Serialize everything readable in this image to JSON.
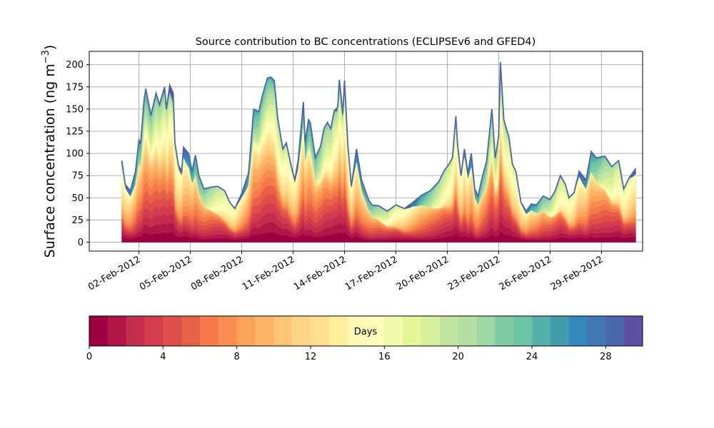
{
  "chart_data": {
    "type": "area",
    "title": "Source contribution to BC concentrations (ECLIPSEv6 and GFED4)",
    "ylabel_text": "Surface concentration (ng m",
    "ylabel_sup": "−3",
    "ylabel_close": ")",
    "ylim": [
      -10,
      215
    ],
    "yticks": [
      0,
      25,
      50,
      75,
      100,
      125,
      150,
      175,
      200
    ],
    "xlim": [
      -0.9,
      31.4
    ],
    "xtick_values": [
      2,
      5,
      8,
      11,
      14,
      17,
      20,
      23,
      26,
      29
    ],
    "xtick_labels": [
      "02-Feb-2012",
      "05-Feb-2012",
      "08-Feb-2012",
      "11-Feb-2012",
      "14-Feb-2012",
      "17-Feb-2012",
      "20-Feb-2012",
      "23-Feb-2012",
      "26-Feb-2012",
      "29-Feb-2012"
    ],
    "x_unit": "day of February 2012",
    "grid": true,
    "total": [
      [
        1.0,
        92
      ],
      [
        1.2,
        65
      ],
      [
        1.5,
        58
      ],
      [
        1.8,
        80
      ],
      [
        2.0,
        115
      ],
      [
        2.1,
        112
      ],
      [
        2.3,
        160
      ],
      [
        2.4,
        173
      ],
      [
        2.7,
        143
      ],
      [
        3.0,
        168
      ],
      [
        3.2,
        155
      ],
      [
        3.5,
        175
      ],
      [
        3.6,
        150
      ],
      [
        3.8,
        177
      ],
      [
        4.0,
        168
      ],
      [
        4.1,
        112
      ],
      [
        4.3,
        87
      ],
      [
        4.5,
        80
      ],
      [
        4.6,
        107
      ],
      [
        4.9,
        100
      ],
      [
        5.1,
        80
      ],
      [
        5.3,
        98
      ],
      [
        5.5,
        75
      ],
      [
        5.8,
        60
      ],
      [
        6.2,
        62
      ],
      [
        6.6,
        63
      ],
      [
        7.0,
        58
      ],
      [
        7.3,
        45
      ],
      [
        7.6,
        38
      ],
      [
        8.0,
        55
      ],
      [
        8.4,
        78
      ],
      [
        8.7,
        150
      ],
      [
        9.0,
        147
      ],
      [
        9.2,
        165
      ],
      [
        9.5,
        185
      ],
      [
        9.7,
        186
      ],
      [
        9.9,
        182
      ],
      [
        10.1,
        140
      ],
      [
        10.4,
        105
      ],
      [
        10.6,
        112
      ],
      [
        10.9,
        85
      ],
      [
        11.1,
        70
      ],
      [
        11.3,
        93
      ],
      [
        11.6,
        158
      ],
      [
        11.7,
        112
      ],
      [
        11.9,
        138
      ],
      [
        12.0,
        135
      ],
      [
        12.3,
        95
      ],
      [
        12.6,
        108
      ],
      [
        12.8,
        128
      ],
      [
        13.0,
        135
      ],
      [
        13.2,
        128
      ],
      [
        13.4,
        148
      ],
      [
        13.6,
        152
      ],
      [
        13.7,
        183
      ],
      [
        13.9,
        145
      ],
      [
        14.0,
        182
      ],
      [
        14.2,
        108
      ],
      [
        14.4,
        63
      ],
      [
        14.7,
        105
      ],
      [
        15.0,
        70
      ],
      [
        15.4,
        48
      ],
      [
        15.6,
        42
      ],
      [
        16.0,
        41
      ],
      [
        16.5,
        35
      ],
      [
        17.0,
        42
      ],
      [
        17.5,
        38
      ],
      [
        18.0,
        45
      ],
      [
        18.5,
        53
      ],
      [
        19.0,
        58
      ],
      [
        19.5,
        68
      ],
      [
        19.8,
        80
      ],
      [
        20.1,
        88
      ],
      [
        20.3,
        95
      ],
      [
        20.5,
        142
      ],
      [
        20.6,
        110
      ],
      [
        20.8,
        75
      ],
      [
        21.0,
        105
      ],
      [
        21.2,
        78
      ],
      [
        21.4,
        100
      ],
      [
        21.6,
        60
      ],
      [
        21.8,
        52
      ],
      [
        22.0,
        70
      ],
      [
        22.3,
        92
      ],
      [
        22.6,
        150
      ],
      [
        22.8,
        95
      ],
      [
        23.0,
        120
      ],
      [
        23.1,
        203
      ],
      [
        23.3,
        138
      ],
      [
        23.6,
        118
      ],
      [
        23.8,
        88
      ],
      [
        24.0,
        80
      ],
      [
        24.3,
        45
      ],
      [
        24.6,
        35
      ],
      [
        24.9,
        43
      ],
      [
        25.2,
        42
      ],
      [
        25.6,
        52
      ],
      [
        26.0,
        48
      ],
      [
        26.3,
        58
      ],
      [
        26.6,
        75
      ],
      [
        26.9,
        65
      ],
      [
        27.1,
        50
      ],
      [
        27.4,
        56
      ],
      [
        27.7,
        80
      ],
      [
        28.1,
        70
      ],
      [
        28.4,
        102
      ],
      [
        28.7,
        95
      ],
      [
        29.2,
        97
      ],
      [
        29.6,
        85
      ],
      [
        30.0,
        92
      ],
      [
        30.3,
        60
      ],
      [
        30.6,
        72
      ],
      [
        31.0,
        83
      ]
    ],
    "colorbar": {
      "label": "Days",
      "min": 0,
      "max": 30,
      "ticks": [
        0,
        4,
        8,
        12,
        16,
        20,
        24,
        28
      ],
      "colors": [
        "#9e0142",
        "#b11847",
        "#c42e4d",
        "#d33c4e",
        "#e04e4a",
        "#e76146",
        "#f67a49",
        "#f88d51",
        "#fba35b",
        "#fdb365",
        "#fdc575",
        "#fed586",
        "#fee090",
        "#feee9c",
        "#fff9b3",
        "#fbfdb9",
        "#f3faab",
        "#e6f598",
        "#d8ef9b",
        "#c2e69f",
        "#b3e0a2",
        "#9dd7a4",
        "#80cba4",
        "#6bc4a4",
        "#56b1a9",
        "#419dae",
        "#3288bc",
        "#3d77b5",
        "#4a66ac",
        "#5e4fa2"
      ]
    }
  }
}
